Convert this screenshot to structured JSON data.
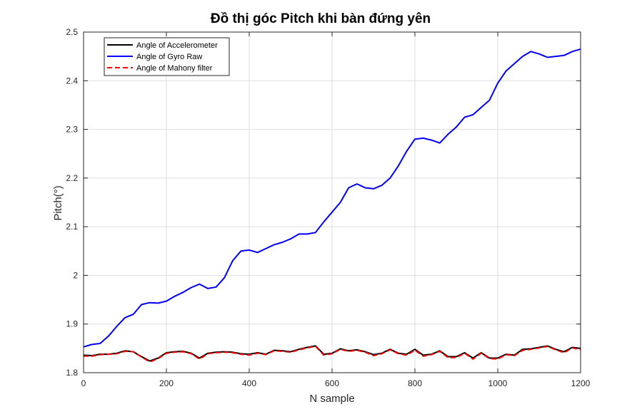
{
  "chart_data": {
    "type": "line",
    "title": "Đồ thị góc Pitch khi bàn đứng yên",
    "xlabel": "N sample",
    "ylabel": "Pitch(°)",
    "xlim": [
      0,
      1200
    ],
    "ylim": [
      1.8,
      2.5
    ],
    "xticks": [
      0,
      200,
      400,
      600,
      800,
      1000,
      1200
    ],
    "xtick_labels": [
      "0",
      "200",
      "400",
      "600",
      "800",
      "1000",
      "1200"
    ],
    "yticks": [
      1.8,
      1.9,
      2.0,
      2.1,
      2.2,
      2.3,
      2.4,
      2.5
    ],
    "ytick_labels": [
      "1.8",
      "1.9",
      "2",
      "2.1",
      "2.2",
      "2.3",
      "2.4",
      "2.5"
    ],
    "grid": true,
    "legend_position": "top-left",
    "series": [
      {
        "name": "Angle of Accelerometer",
        "color": "#000000",
        "style": "solid",
        "x": [
          0,
          20,
          40,
          60,
          80,
          100,
          120,
          140,
          160,
          180,
          200,
          220,
          240,
          260,
          280,
          300,
          320,
          340,
          360,
          380,
          400,
          420,
          440,
          460,
          480,
          500,
          520,
          540,
          560,
          580,
          600,
          620,
          640,
          660,
          680,
          700,
          720,
          740,
          760,
          780,
          800,
          820,
          840,
          860,
          880,
          900,
          920,
          940,
          960,
          980,
          1000,
          1020,
          1040,
          1060,
          1080,
          1100,
          1120,
          1140,
          1160,
          1180,
          1200
        ],
        "values": [
          1.836,
          1.835,
          1.838,
          1.838,
          1.84,
          1.845,
          1.843,
          1.833,
          1.824,
          1.83,
          1.841,
          1.843,
          1.844,
          1.84,
          1.83,
          1.84,
          1.842,
          1.843,
          1.842,
          1.839,
          1.838,
          1.841,
          1.838,
          1.846,
          1.845,
          1.843,
          1.848,
          1.852,
          1.855,
          1.838,
          1.84,
          1.849,
          1.845,
          1.847,
          1.843,
          1.837,
          1.84,
          1.848,
          1.84,
          1.838,
          1.848,
          1.836,
          1.838,
          1.845,
          1.833,
          1.833,
          1.841,
          1.83,
          1.841,
          1.83,
          1.83,
          1.838,
          1.836,
          1.848,
          1.849,
          1.852,
          1.855,
          1.848,
          1.843,
          1.852,
          1.85
        ]
      },
      {
        "name": "Angle of Gyro Raw",
        "color": "#0000ff",
        "style": "solid",
        "x": [
          0,
          20,
          40,
          60,
          80,
          100,
          120,
          140,
          160,
          180,
          200,
          220,
          240,
          260,
          280,
          300,
          320,
          340,
          360,
          380,
          400,
          420,
          440,
          460,
          480,
          500,
          520,
          540,
          560,
          580,
          600,
          620,
          640,
          660,
          680,
          700,
          720,
          740,
          760,
          780,
          800,
          820,
          840,
          860,
          880,
          900,
          920,
          940,
          960,
          980,
          1000,
          1020,
          1040,
          1060,
          1080,
          1100,
          1120,
          1140,
          1160,
          1180,
          1200
        ],
        "values": [
          1.853,
          1.858,
          1.86,
          1.875,
          1.895,
          1.913,
          1.92,
          1.94,
          1.944,
          1.943,
          1.947,
          1.957,
          1.965,
          1.975,
          1.982,
          1.973,
          1.976,
          1.995,
          2.03,
          2.05,
          2.052,
          2.047,
          2.055,
          2.063,
          2.068,
          2.075,
          2.085,
          2.085,
          2.088,
          2.11,
          2.13,
          2.15,
          2.18,
          2.188,
          2.18,
          2.178,
          2.185,
          2.2,
          2.225,
          2.255,
          2.28,
          2.282,
          2.278,
          2.272,
          2.29,
          2.305,
          2.325,
          2.33,
          2.345,
          2.36,
          2.395,
          2.42,
          2.435,
          2.45,
          2.46,
          2.455,
          2.448,
          2.45,
          2.452,
          2.46,
          2.465
        ]
      },
      {
        "name": "Angle of Mahony filter",
        "color": "#ff0000",
        "style": "dashed",
        "x": [
          0,
          20,
          40,
          60,
          80,
          100,
          120,
          140,
          160,
          180,
          200,
          220,
          240,
          260,
          280,
          300,
          320,
          340,
          360,
          380,
          400,
          420,
          440,
          460,
          480,
          500,
          520,
          540,
          560,
          580,
          600,
          620,
          640,
          660,
          680,
          700,
          720,
          740,
          760,
          780,
          800,
          820,
          840,
          860,
          880,
          900,
          920,
          940,
          960,
          980,
          1000,
          1020,
          1040,
          1060,
          1080,
          1100,
          1120,
          1140,
          1160,
          1180,
          1200
        ],
        "values": [
          1.834,
          1.834,
          1.837,
          1.838,
          1.839,
          1.844,
          1.843,
          1.832,
          1.822,
          1.829,
          1.84,
          1.842,
          1.843,
          1.839,
          1.828,
          1.839,
          1.841,
          1.842,
          1.841,
          1.838,
          1.836,
          1.84,
          1.837,
          1.845,
          1.844,
          1.842,
          1.847,
          1.851,
          1.854,
          1.836,
          1.839,
          1.848,
          1.844,
          1.846,
          1.842,
          1.835,
          1.839,
          1.847,
          1.839,
          1.836,
          1.846,
          1.834,
          1.837,
          1.844,
          1.831,
          1.831,
          1.84,
          1.828,
          1.84,
          1.829,
          1.828,
          1.837,
          1.835,
          1.846,
          1.848,
          1.851,
          1.854,
          1.847,
          1.841,
          1.851,
          1.847
        ]
      }
    ]
  }
}
